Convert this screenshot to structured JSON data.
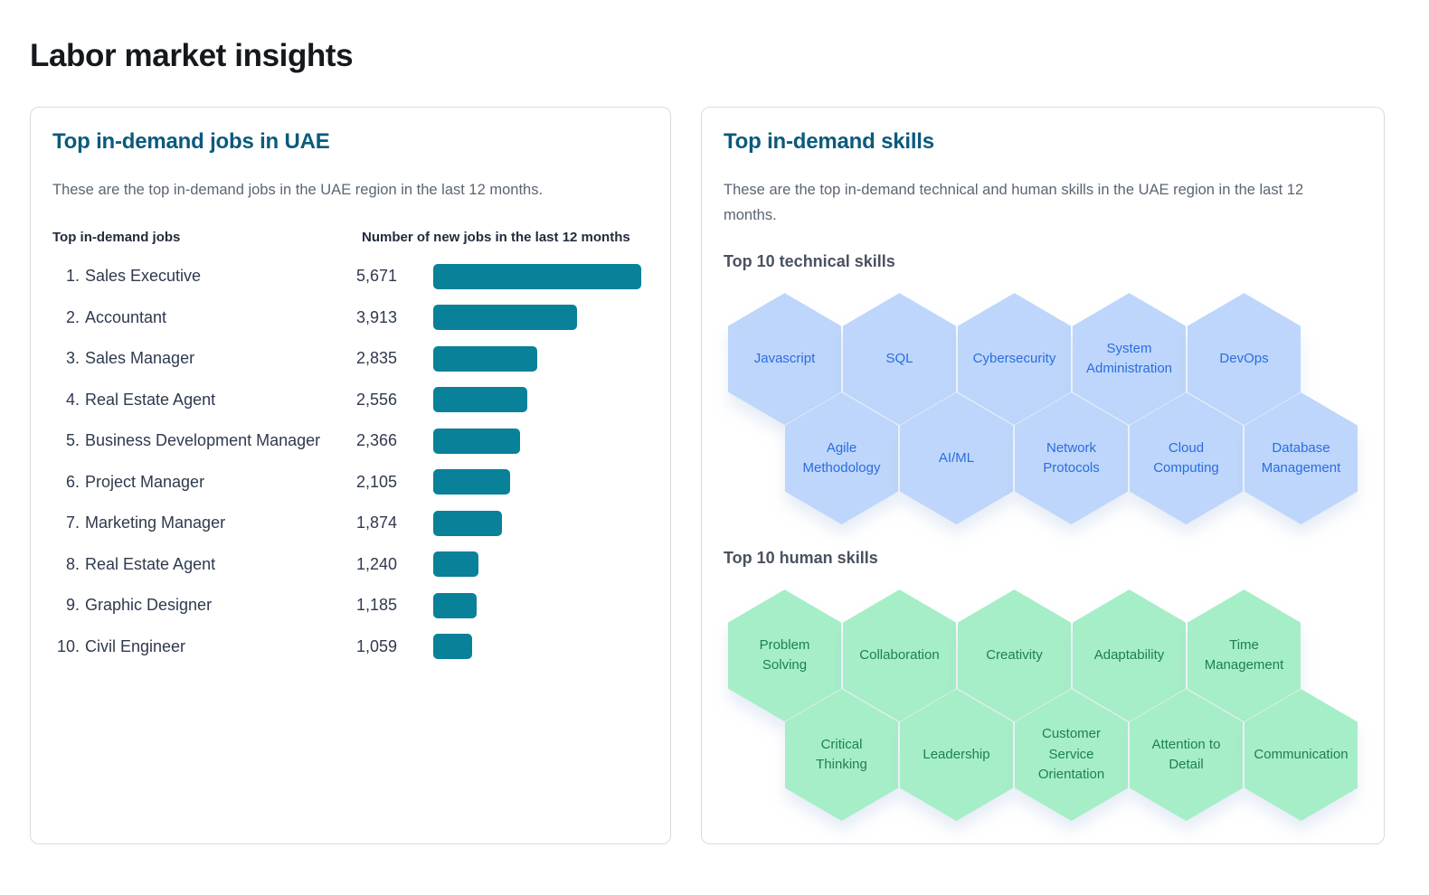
{
  "page": {
    "title": "Labor market insights"
  },
  "jobs_card": {
    "title": "Top in-demand jobs in UAE",
    "subtitle": "These are the top in-demand jobs in the UAE region in the last 12 months.",
    "columns": {
      "jobs": "Top in-demand jobs",
      "count": "Number of new jobs in the last 12 months"
    },
    "rows": [
      {
        "rank": "1.",
        "label": "Sales Executive",
        "value": 5671,
        "value_label": "5,671"
      },
      {
        "rank": "2.",
        "label": "Accountant",
        "value": 3913,
        "value_label": "3,913"
      },
      {
        "rank": "3.",
        "label": "Sales Manager",
        "value": 2835,
        "value_label": "2,835"
      },
      {
        "rank": "4.",
        "label": "Real Estate Agent",
        "value": 2556,
        "value_label": "2,556"
      },
      {
        "rank": "5.",
        "label": "Business Development Manager",
        "value": 2366,
        "value_label": "2,366"
      },
      {
        "rank": "6.",
        "label": "Project Manager",
        "value": 2105,
        "value_label": "2,105"
      },
      {
        "rank": "7.",
        "label": "Marketing Manager",
        "value": 1874,
        "value_label": "1,874"
      },
      {
        "rank": "8.",
        "label": "Real Estate Agent",
        "value": 1240,
        "value_label": "1,240"
      },
      {
        "rank": "9.",
        "label": "Graphic Designer",
        "value": 1185,
        "value_label": "1,185"
      },
      {
        "rank": "10.",
        "label": "Civil Engineer",
        "value": 1059,
        "value_label": "1,059"
      }
    ]
  },
  "skills_card": {
    "title": "Top in-demand skills",
    "subtitle": "These are the top in-demand technical and human skills in the UAE region in the last 12 months.",
    "technical": {
      "heading": "Top 10 technical skills",
      "items": [
        "Javascript",
        "SQL",
        "Cybersecurity",
        "System Administration",
        "DevOps",
        "Agile Methodology",
        "AI/ML",
        "Network Protocols",
        "Cloud Computing",
        "Database Management"
      ]
    },
    "human": {
      "heading": "Top 10 human skills",
      "items": [
        "Problem Solving",
        "Collaboration",
        "Creativity",
        "Adaptability",
        "Time Management",
        "Critical Thinking",
        "Leadership",
        "Customer Service Orientation",
        "Attention to Detail",
        "Communication"
      ]
    }
  },
  "colors": {
    "bar": "#088199",
    "card_title": "#0b5a7d",
    "technical_hex_fill": "#bed6fb",
    "technical_hex_text": "#2a6de0",
    "human_hex_fill": "#a6eec7",
    "human_hex_text": "#1d7f57"
  },
  "chart_data": {
    "type": "bar",
    "orientation": "horizontal",
    "title": "Top in-demand jobs in UAE",
    "categories": [
      "Sales Executive",
      "Accountant",
      "Sales Manager",
      "Real Estate Agent",
      "Business Development Manager",
      "Project Manager",
      "Marketing Manager",
      "Real Estate Agent",
      "Graphic Designer",
      "Civil Engineer"
    ],
    "values": [
      5671,
      3913,
      2835,
      2556,
      2366,
      2105,
      1874,
      1240,
      1185,
      1059
    ],
    "xlabel": "Number of new jobs in the last 12 months",
    "ylabel": "Top in-demand jobs",
    "xlim": [
      0,
      5671
    ],
    "grid": false,
    "legend": false,
    "bar_color": "#088199"
  }
}
